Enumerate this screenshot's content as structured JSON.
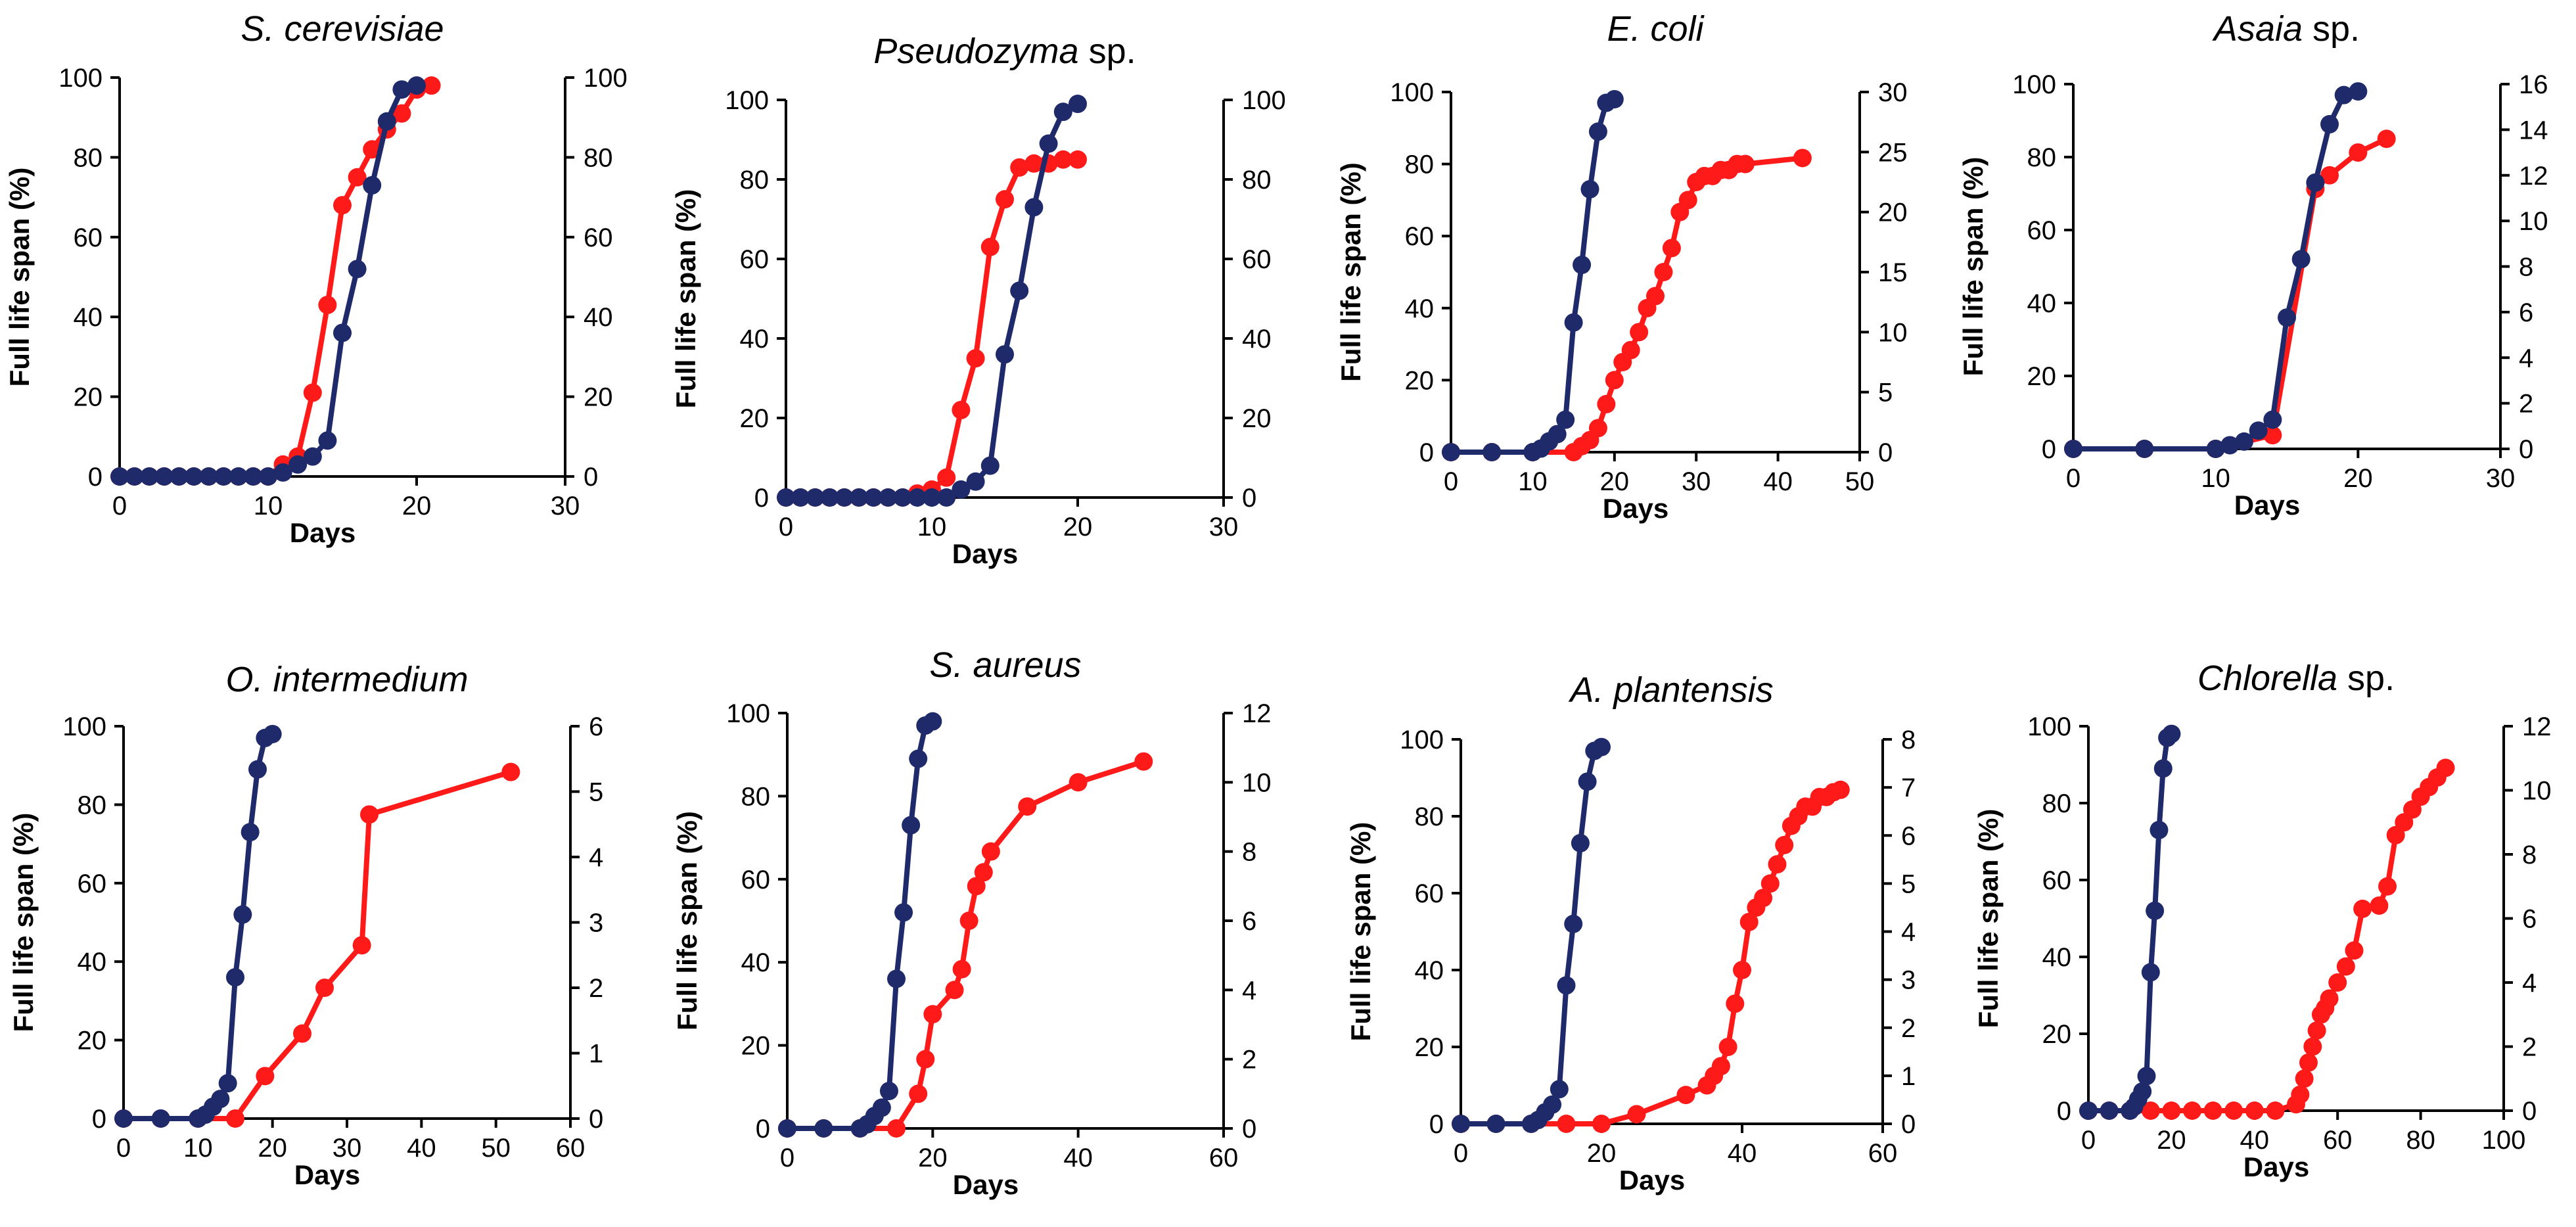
{
  "colors": {
    "full_life_span": "#1f2a6b",
    "second_series": "#ff1a1a",
    "axis": "#000000"
  },
  "chart_data": [
    {
      "type": "line",
      "title_italic": "S. cerevisiae",
      "title_plain": "",
      "xlabel": "Days",
      "ylabel": "Full life span  (%)",
      "xlim": [
        0,
        30
      ],
      "xticks": [
        "0",
        "10",
        "20",
        "30"
      ],
      "ylim": [
        0,
        100
      ],
      "yticks": [
        "0",
        "20",
        "40",
        "60",
        "80",
        "100"
      ],
      "y2lim": [
        0,
        100
      ],
      "y2ticks": [
        "0",
        "20",
        "40",
        "60",
        "80",
        "100"
      ],
      "series": [
        {
          "name": "full_life_span",
          "axis": "left",
          "color": "#1f2a6b",
          "x": [
            0,
            1,
            2,
            3,
            4,
            5,
            6,
            7,
            8,
            9,
            10,
            11,
            12,
            13,
            14,
            15,
            16,
            17,
            18,
            19,
            20
          ],
          "y": [
            0,
            0,
            0,
            0,
            0,
            0,
            0,
            0,
            0,
            0,
            0,
            1,
            3,
            5,
            9,
            36,
            52,
            73,
            89,
            97,
            98
          ]
        },
        {
          "name": "red_series",
          "axis": "right",
          "color": "#ff1a1a",
          "x": [
            0,
            1,
            2,
            3,
            4,
            5,
            6,
            7,
            8,
            9,
            10,
            11,
            12,
            13,
            14,
            15,
            16,
            17,
            18,
            19,
            20,
            21
          ],
          "y": [
            0,
            0,
            0,
            0,
            0,
            0,
            0,
            0,
            0,
            0,
            0,
            3,
            5,
            21,
            43,
            68,
            75,
            82,
            87,
            91,
            97,
            98
          ]
        }
      ]
    },
    {
      "type": "line",
      "title_italic": "Pseudozyma",
      "title_plain": " sp.",
      "xlabel": "Days",
      "ylabel": "Full life span (%)",
      "xlim": [
        0,
        30
      ],
      "xticks": [
        "0",
        "10",
        "20",
        "30"
      ],
      "ylim": [
        0,
        100
      ],
      "yticks": [
        "0",
        "20",
        "40",
        "60",
        "80",
        "100"
      ],
      "y2lim": [
        0,
        100
      ],
      "y2ticks": [
        "0",
        "20",
        "40",
        "60",
        "80",
        "100"
      ],
      "series": [
        {
          "name": "full_life_span",
          "axis": "left",
          "color": "#1f2a6b",
          "x": [
            0,
            1,
            2,
            3,
            4,
            5,
            6,
            7,
            8,
            9,
            10,
            11,
            12,
            13,
            14,
            15,
            16,
            17,
            18,
            19,
            20
          ],
          "y": [
            0,
            0,
            0,
            0,
            0,
            0,
            0,
            0,
            0,
            0,
            0,
            0,
            2,
            4,
            8,
            36,
            52,
            73,
            89,
            97,
            99
          ]
        },
        {
          "name": "red_series",
          "axis": "right",
          "color": "#ff1a1a",
          "x": [
            0,
            1,
            2,
            3,
            4,
            5,
            6,
            7,
            8,
            9,
            10,
            11,
            12,
            13,
            14,
            15,
            16,
            17,
            18,
            19,
            20
          ],
          "y": [
            0,
            0,
            0,
            0,
            0,
            0,
            0,
            0,
            0,
            1,
            2,
            5,
            22,
            35,
            63,
            75,
            83,
            84,
            84,
            85,
            85
          ]
        }
      ]
    },
    {
      "type": "line",
      "title_italic": "E. coli",
      "title_plain": "",
      "xlabel": "Days",
      "ylabel": "Full life span  (%)",
      "xlim": [
        0,
        50
      ],
      "xticks": [
        "0",
        "10",
        "20",
        "30",
        "40",
        "50"
      ],
      "ylim": [
        0,
        100
      ],
      "yticks": [
        "0",
        "20",
        "40",
        "60",
        "80",
        "100"
      ],
      "y2lim": [
        0,
        30
      ],
      "y2ticks": [
        "0",
        "5",
        "10",
        "15",
        "20",
        "25",
        "30"
      ],
      "series": [
        {
          "name": "full_life_span",
          "axis": "left",
          "color": "#1f2a6b",
          "x": [
            0,
            5,
            10,
            11,
            12,
            13,
            14,
            15,
            16,
            17,
            18,
            19,
            20
          ],
          "y": [
            0,
            0,
            0,
            1,
            3,
            5,
            9,
            36,
            52,
            73,
            89,
            97,
            98
          ]
        },
        {
          "name": "red_series",
          "axis": "right",
          "color": "#ff1a1a",
          "x": [
            0,
            5,
            10,
            15,
            16,
            17,
            18,
            19,
            20,
            21,
            22,
            23,
            24,
            25,
            26,
            27,
            28,
            29,
            30,
            31,
            32,
            33,
            34,
            35,
            36,
            43
          ],
          "y": [
            0,
            0,
            0,
            0,
            0.5,
            1,
            2,
            4,
            6,
            7.5,
            8.5,
            10,
            12,
            13,
            15,
            17,
            20,
            21,
            22.5,
            23,
            23,
            23.5,
            23.5,
            24,
            24,
            24.5
          ]
        }
      ]
    },
    {
      "type": "line",
      "title_italic": "Asaia",
      "title_plain": " sp.",
      "xlabel": "Days",
      "ylabel": "Full life span  (%)",
      "xlim": [
        0,
        30
      ],
      "xticks": [
        "0",
        "10",
        "20",
        "30"
      ],
      "ylim": [
        0,
        100
      ],
      "yticks": [
        "0",
        "20",
        "40",
        "60",
        "80",
        "100"
      ],
      "y2lim": [
        0,
        16
      ],
      "y2ticks": [
        "0",
        "2",
        "4",
        "6",
        "8",
        "10",
        "12",
        "14",
        "16"
      ],
      "series": [
        {
          "name": "full_life_span",
          "axis": "left",
          "color": "#1f2a6b",
          "x": [
            0,
            5,
            10,
            11,
            12,
            13,
            14,
            15,
            16,
            17,
            18,
            19,
            20
          ],
          "y": [
            0,
            0,
            0,
            1,
            2,
            5,
            8,
            36,
            52,
            73,
            89,
            97,
            98
          ]
        },
        {
          "name": "red_series",
          "axis": "right",
          "color": "#ff1a1a",
          "x": [
            0,
            5,
            10,
            14,
            17,
            18,
            20,
            22
          ],
          "y": [
            0,
            0,
            0,
            0.6,
            11.4,
            12,
            13,
            13.6
          ]
        }
      ]
    },
    {
      "type": "line",
      "title_italic": "O. intermedium",
      "title_plain": "",
      "xlabel": "Days",
      "ylabel": "Full life span (%)",
      "xlim": [
        0,
        60
      ],
      "xticks": [
        "0",
        "10",
        "20",
        "30",
        "40",
        "50",
        "60"
      ],
      "ylim": [
        0,
        100
      ],
      "yticks": [
        "0",
        "20",
        "40",
        "60",
        "80",
        "100"
      ],
      "y2lim": [
        0,
        6
      ],
      "y2ticks": [
        "0",
        "1",
        "2",
        "3",
        "4",
        "5",
        "6"
      ],
      "series": [
        {
          "name": "full_life_span",
          "axis": "left",
          "color": "#1f2a6b",
          "x": [
            0,
            5,
            10,
            11,
            12,
            13,
            14,
            15,
            16,
            17,
            18,
            19,
            20
          ],
          "y": [
            0,
            0,
            0,
            1,
            3,
            5,
            9,
            36,
            52,
            73,
            89,
            97,
            98
          ]
        },
        {
          "name": "red_series",
          "axis": "right",
          "color": "#ff1a1a",
          "x": [
            0,
            5,
            10,
            15,
            19,
            24,
            27,
            32,
            33,
            52
          ],
          "y": [
            0,
            0,
            0,
            0,
            0.65,
            1.3,
            2.0,
            2.65,
            4.65,
            5.3
          ]
        }
      ]
    },
    {
      "type": "line",
      "title_italic": "S. aureus",
      "title_plain": "",
      "xlabel": "Days",
      "ylabel": "Full life span  (%)",
      "xlim": [
        0,
        60
      ],
      "xticks": [
        "0",
        "20",
        "40",
        "60"
      ],
      "ylim": [
        0,
        100
      ],
      "yticks": [
        "0",
        "20",
        "40",
        "60",
        "80",
        "100"
      ],
      "y2lim": [
        0,
        12
      ],
      "y2ticks": [
        "0",
        "2",
        "4",
        "6",
        "8",
        "10",
        "12"
      ],
      "series": [
        {
          "name": "full_life_span",
          "axis": "left",
          "color": "#1f2a6b",
          "x": [
            0,
            5,
            10,
            11,
            12,
            13,
            14,
            15,
            16,
            17,
            18,
            19,
            20
          ],
          "y": [
            0,
            0,
            0,
            1,
            3,
            5,
            9,
            36,
            52,
            73,
            89,
            97,
            98
          ]
        },
        {
          "name": "red_series",
          "axis": "right",
          "color": "#ff1a1a",
          "x": [
            0,
            5,
            10,
            15,
            18,
            19,
            20,
            23,
            24,
            25,
            26,
            27,
            28,
            33,
            40,
            49
          ],
          "y": [
            0,
            0,
            0,
            0,
            1,
            2,
            3.3,
            4,
            4.6,
            6,
            7,
            7.4,
            8,
            9.3,
            10,
            10.6
          ]
        }
      ]
    },
    {
      "type": "line",
      "title_italic": "A. plantensis",
      "title_plain": "",
      "xlabel": "Days",
      "ylabel": "Full life span  (%)",
      "xlim": [
        0,
        60
      ],
      "xticks": [
        "0",
        "20",
        "40",
        "60"
      ],
      "ylim": [
        0,
        100
      ],
      "yticks": [
        "0",
        "20",
        "40",
        "60",
        "80",
        "100"
      ],
      "y2lim": [
        0,
        8
      ],
      "y2ticks": [
        "0",
        "1",
        "2",
        "3",
        "4",
        "5",
        "6",
        "7",
        "8"
      ],
      "series": [
        {
          "name": "full_life_span",
          "axis": "left",
          "color": "#1f2a6b",
          "x": [
            0,
            5,
            10,
            11,
            12,
            13,
            14,
            15,
            16,
            17,
            18,
            19,
            20
          ],
          "y": [
            0,
            0,
            0,
            1,
            3,
            5,
            9,
            36,
            52,
            73,
            89,
            97,
            98
          ]
        },
        {
          "name": "red_series",
          "axis": "right",
          "color": "#ff1a1a",
          "x": [
            0,
            5,
            10,
            15,
            20,
            25,
            32,
            35,
            36,
            37,
            38,
            39,
            40,
            41,
            42,
            43,
            44,
            45,
            46,
            47,
            48,
            49,
            50,
            51,
            52,
            53,
            54
          ],
          "y": [
            0,
            0,
            0,
            0,
            0,
            0.2,
            0.6,
            0.8,
            1.0,
            1.2,
            1.6,
            2.5,
            3.2,
            4.2,
            4.5,
            4.7,
            5.0,
            5.4,
            5.8,
            6.2,
            6.4,
            6.6,
            6.6,
            6.8,
            6.8,
            6.9,
            6.95
          ]
        }
      ]
    },
    {
      "type": "line",
      "title_italic": "Chlorella",
      "title_plain": " sp.",
      "xlabel": "Days",
      "ylabel": "Full life span  (%)",
      "xlim": [
        0,
        100
      ],
      "xticks": [
        "0",
        "20",
        "40",
        "60",
        "80",
        "100"
      ],
      "ylim": [
        0,
        100
      ],
      "yticks": [
        "0",
        "20",
        "40",
        "60",
        "80",
        "100"
      ],
      "y2lim": [
        0,
        12
      ],
      "y2ticks": [
        "0",
        "2",
        "4",
        "6",
        "8",
        "10",
        "12"
      ],
      "series": [
        {
          "name": "full_life_span",
          "axis": "left",
          "color": "#1f2a6b",
          "x": [
            0,
            5,
            10,
            11,
            12,
            13,
            14,
            15,
            16,
            17,
            18,
            19,
            20
          ],
          "y": [
            0,
            0,
            0,
            1,
            3,
            5,
            9,
            36,
            52,
            73,
            89,
            97,
            98
          ]
        },
        {
          "name": "red_series",
          "axis": "right",
          "color": "#ff1a1a",
          "x": [
            0,
            5,
            10,
            15,
            20,
            25,
            30,
            35,
            40,
            45,
            50,
            51,
            52,
            53,
            54,
            55,
            56,
            57,
            58,
            60,
            62,
            64,
            66,
            70,
            72,
            74,
            76,
            78,
            80,
            82,
            84,
            86
          ],
          "y": [
            0,
            0,
            0,
            0,
            0,
            0,
            0,
            0,
            0,
            0,
            0.2,
            0.5,
            1.0,
            1.5,
            2.0,
            2.5,
            3.0,
            3.2,
            3.5,
            4.0,
            4.5,
            5.0,
            6.3,
            6.4,
            7.0,
            8.6,
            9.0,
            9.4,
            9.8,
            10.1,
            10.4,
            10.7
          ]
        }
      ]
    }
  ]
}
